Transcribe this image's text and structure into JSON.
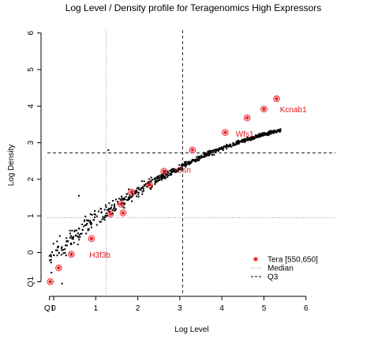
{
  "chart_data": {
    "type": "scatter",
    "title": "Log Level / Density profile for Teragenomics High Expressors",
    "xlabel": "Log Level",
    "ylabel": "Log Density",
    "xlim": [
      -0.1,
      6.0
    ],
    "ylim": [
      -1.0,
      6.0
    ],
    "x_ticks": [
      {
        "value": -0.1,
        "label": "Q1"
      },
      {
        "value": 0,
        "label": "0"
      },
      {
        "value": 1,
        "label": "1"
      },
      {
        "value": 2,
        "label": "2"
      },
      {
        "value": 3,
        "label": "3"
      },
      {
        "value": 4,
        "label": "4"
      },
      {
        "value": 5,
        "label": "5"
      },
      {
        "value": 6,
        "label": "6"
      }
    ],
    "y_ticks": [
      {
        "value": -0.8,
        "label": "Q1"
      },
      {
        "value": 0,
        "label": "0"
      },
      {
        "value": 1,
        "label": "1"
      },
      {
        "value": 2,
        "label": "2"
      },
      {
        "value": 3,
        "label": "3"
      },
      {
        "value": 4,
        "label": "4"
      },
      {
        "value": 5,
        "label": "5"
      },
      {
        "value": 6,
        "label": "6"
      }
    ],
    "reference_lines": {
      "median": {
        "x": 1.25,
        "y": 0.95,
        "style": "dotted"
      },
      "q3": {
        "x": 3.07,
        "y": 2.72,
        "style": "dashed"
      }
    },
    "series": [
      {
        "name": "Tera [550,650]",
        "color": "#e8141b",
        "marker": "star",
        "points": [
          [
            -0.08,
            -0.8
          ],
          [
            0.12,
            -0.42
          ],
          [
            0.42,
            -0.05
          ],
          [
            0.9,
            0.38
          ],
          [
            1.35,
            1.05
          ],
          [
            1.6,
            1.32
          ],
          [
            1.65,
            1.08
          ],
          [
            1.85,
            1.65
          ],
          [
            2.28,
            1.85
          ],
          [
            2.62,
            2.22
          ],
          [
            3.3,
            2.8
          ],
          [
            4.08,
            3.28
          ],
          [
            4.6,
            3.68
          ],
          [
            5.0,
            3.92
          ],
          [
            5.3,
            4.2
          ]
        ]
      }
    ],
    "labels": [
      {
        "text": "Kcnab1",
        "x": 5.38,
        "y": 3.92
      },
      {
        "text": "Wfs1",
        "x": 4.33,
        "y": 3.25
      },
      {
        "text": "Gsn",
        "x": 2.92,
        "y": 2.27
      },
      {
        "text": "H3f3b",
        "x": 0.85,
        "y": -0.05
      }
    ],
    "legend": {
      "position": "bottom-right",
      "entries": [
        {
          "label": "Tera [550,650]",
          "style": "star",
          "color": "#e8141b"
        },
        {
          "label": "Median",
          "style": "dotted",
          "color": "#888888"
        },
        {
          "label": "Q3",
          "style": "dashed",
          "color": "#000000"
        }
      ]
    },
    "background_points_color": "#000000",
    "grid": false
  }
}
